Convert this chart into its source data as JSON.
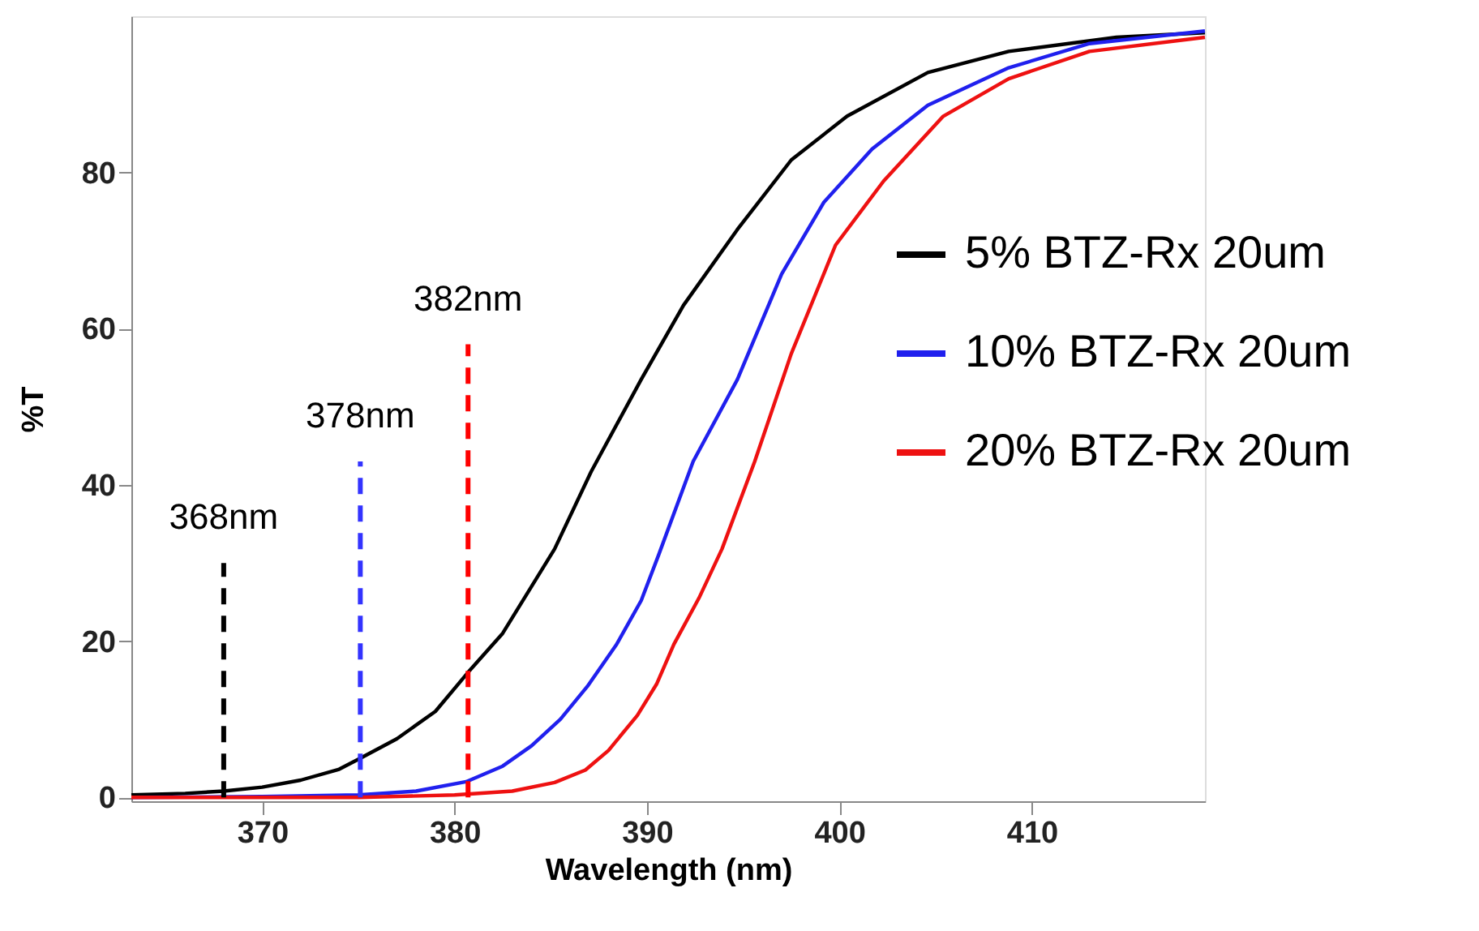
{
  "chart_data": {
    "type": "line",
    "xlabel": "Wavelength (nm)",
    "ylabel": "%T",
    "xlim": [
      363.2,
      419
    ],
    "xticks": [
      370,
      380,
      390,
      400,
      410
    ],
    "ylim": [
      -0.5,
      100
    ],
    "yticks": [
      0,
      20,
      40,
      60,
      80
    ],
    "grid": false,
    "legend": "right",
    "line_style": "solid",
    "marker": "none",
    "series": [
      {
        "name": "5% BTZ-Rx 20um",
        "color": "#000000",
        "x": [
          363.2,
          366,
          368,
          370,
          372,
          374,
          375.1,
          377,
          379,
          380.7,
          382.5,
          384,
          385.2,
          387.1,
          389.7,
          391.9,
          394.7,
          397.5,
          400.4,
          404.6,
          408.8,
          414.4,
          419
        ],
        "values": [
          0.3,
          0.5,
          0.8,
          1.3,
          2.2,
          3.6,
          5,
          7.5,
          11,
          16,
          21,
          27,
          31.8,
          41.7,
          53.5,
          63,
          72.7,
          81.6,
          87.2,
          92.8,
          95.5,
          97.3,
          97.9
        ]
      },
      {
        "name": "10% BTZ-Rx 20um",
        "color": "#2020ee",
        "x": [
          363.2,
          370,
          375,
          378,
          380.6,
          382.5,
          384,
          385.5,
          386.9,
          388.4,
          389.7,
          390.6,
          392.4,
          394.7,
          397,
          399.2,
          401.7,
          404.6,
          408.8,
          413,
          419
        ],
        "values": [
          0,
          0.1,
          0.3,
          0.8,
          2,
          4,
          6.6,
          10,
          14.2,
          19.5,
          25.2,
          31,
          43,
          53.5,
          67,
          76.2,
          83,
          88.6,
          93.4,
          96.5,
          98.1
        ]
      },
      {
        "name": "20% BTZ-Rx 20um",
        "color": "#ee1111",
        "x": [
          363.2,
          375,
          380,
          383,
          385.2,
          386.8,
          388,
          389.5,
          390.5,
          391.4,
          392.7,
          393.9,
          395.6,
          397.5,
          399.8,
          402.3,
          405.4,
          408.8,
          413,
          419
        ],
        "values": [
          0,
          0,
          0.3,
          0.8,
          1.9,
          3.5,
          6,
          10.5,
          14.5,
          19.6,
          25.5,
          31.8,
          43,
          56.8,
          70.7,
          78.9,
          87.2,
          92,
          95.5,
          97.3
        ]
      },
      {
        "type": "line",
        "line_style": "dashed",
        "color": "#000000",
        "x": [
          368,
          368
        ],
        "values": [
          0,
          30
        ]
      },
      {
        "type": "line",
        "line_style": "dashed",
        "color": "#3333ff",
        "x": [
          375.1,
          375.1
        ],
        "values": [
          0,
          43
        ]
      },
      {
        "type": "line",
        "line_style": "dashed",
        "color": "#ff0000",
        "x": [
          380.7,
          380.7
        ],
        "values": [
          0,
          58
        ]
      }
    ],
    "annotations": [
      {
        "text": "368nm",
        "x": 368,
        "y": 30
      },
      {
        "text": "378nm",
        "x": 375.1,
        "y": 43
      },
      {
        "text": "382nm",
        "x": 380.7,
        "y": 58
      }
    ]
  }
}
